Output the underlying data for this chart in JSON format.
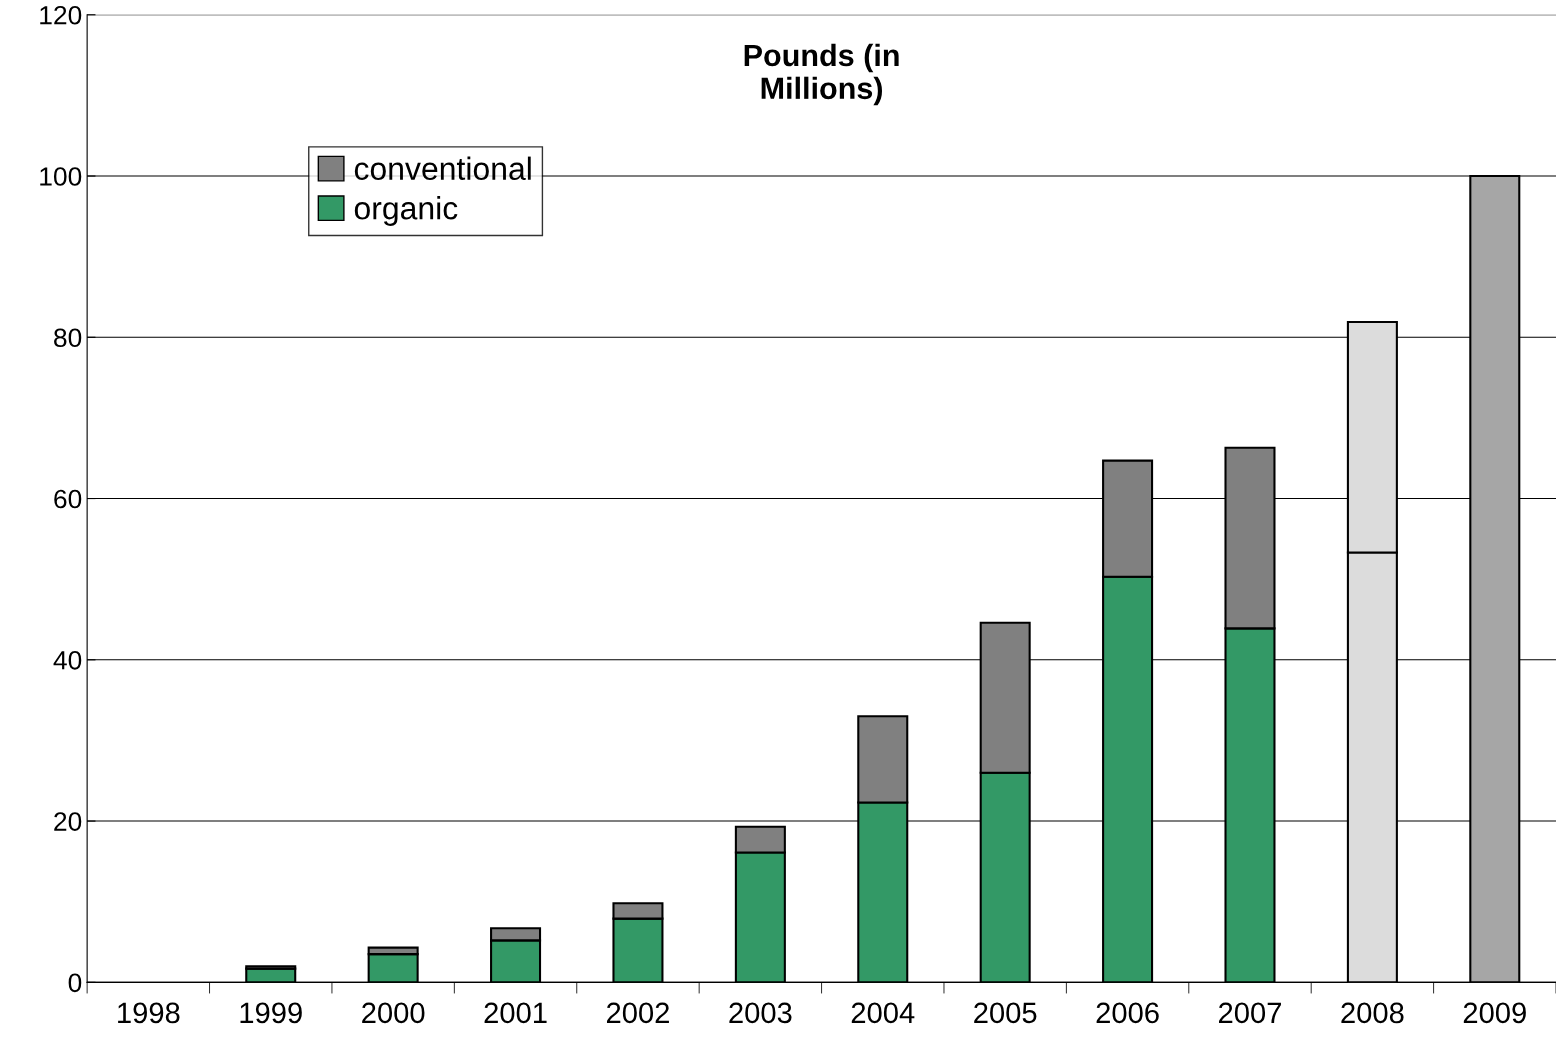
{
  "chart_data": {
    "type": "bar",
    "title": "Pounds (in\nMillions)",
    "stacked": true,
    "categories": [
      "1998",
      "1999",
      "2000",
      "2001",
      "2002",
      "2003",
      "2004",
      "2005",
      "2006",
      "2007",
      "2008",
      "2009"
    ],
    "series": [
      {
        "name": "organic",
        "color": "#339966",
        "colors": [
          "#339966",
          "#339966",
          "#339966",
          "#339966",
          "#339966",
          "#339966",
          "#339966",
          "#339966",
          "#339966",
          "#339966",
          "#dcdcdc",
          "#a6a6a6"
        ],
        "values": [
          null,
          1.7,
          3.5,
          5.2,
          7.9,
          16.1,
          22.3,
          26.0,
          50.3,
          43.9,
          53.3,
          100
        ]
      },
      {
        "name": "conventional",
        "color": "#808080",
        "colors": [
          "#808080",
          "#808080",
          "#808080",
          "#808080",
          "#808080",
          "#808080",
          "#808080",
          "#808080",
          "#808080",
          "#808080",
          "#dcdcdc",
          "#a6a6a6"
        ],
        "values": [
          null,
          0.3,
          0.8,
          1.5,
          1.9,
          3.2,
          10.7,
          18.6,
          14.4,
          22.4,
          28.6,
          null
        ]
      }
    ],
    "ylim": [
      0,
      120
    ],
    "yticks": [
      0,
      20,
      40,
      60,
      80,
      100,
      120
    ],
    "grid": "y",
    "legend": "top left"
  }
}
